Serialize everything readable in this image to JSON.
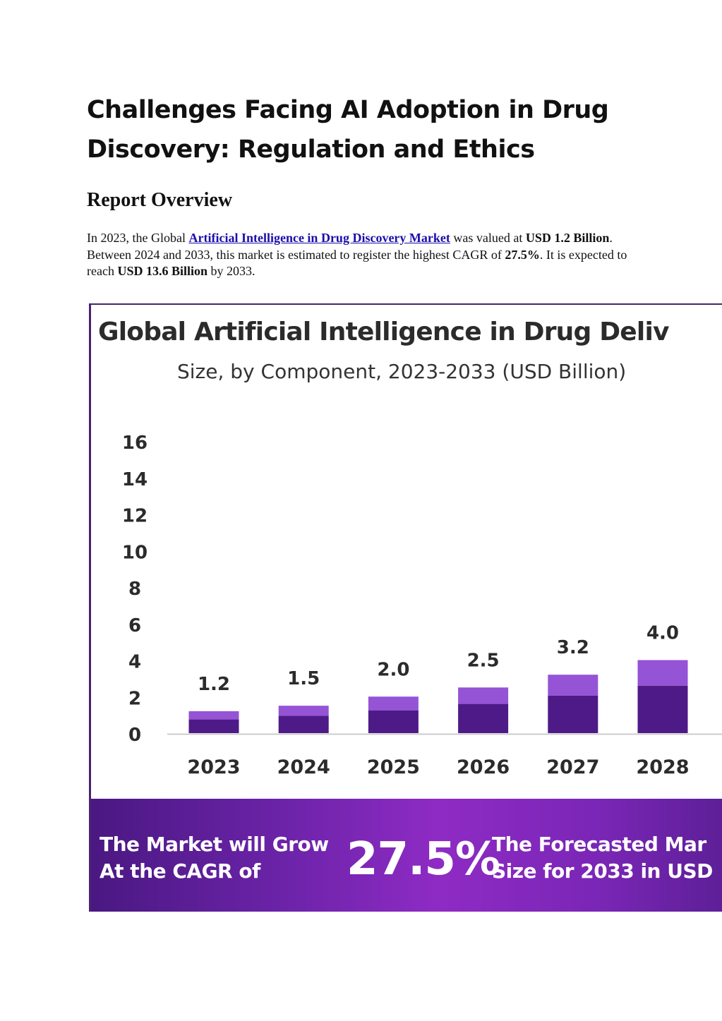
{
  "article": {
    "title": "Challenges Facing AI Adoption in Drug Discovery: Regulation and Ethics",
    "section_heading": "Report Overview",
    "overview": {
      "t1": "In 2023, the Global ",
      "link_text": "Artificial Intelligence in Drug Discovery Market",
      "t2": " was valued at ",
      "b1": "USD 1.2 Billion",
      "t3": ". Between 2024 and 2033, this market is estimated to register the highest CAGR of ",
      "b2": "27.5%",
      "t4": ". It is expected to reach ",
      "b3": "USD 13.6 Billion",
      "t5": " by 2033."
    }
  },
  "infographic": {
    "banner": {
      "left_text": "The Market will Grow\nAt the CAGR of",
      "value": "27.5%",
      "right_text": "The Forecasted Mar\nSize for 2033 in USD"
    }
  },
  "chart_data": {
    "type": "bar",
    "title": "Global Artificial Intelligence in Drug Deliv",
    "subtitle": "Size, by Component, 2023-2033 (USD Billion)",
    "categories": [
      "2023",
      "2024",
      "2025",
      "2026",
      "2027",
      "2028"
    ],
    "totals": [
      1.2,
      1.5,
      2.0,
      2.5,
      3.2,
      4.0
    ],
    "total_labels": [
      "1.2",
      "1.5",
      "2.0",
      "2.5",
      "3.2",
      "4.0"
    ],
    "series": [
      {
        "values": [
          0.75,
          0.95,
          1.25,
          1.6,
          2.05,
          2.6
        ]
      },
      {
        "values": [
          0.45,
          0.55,
          0.75,
          0.9,
          1.15,
          1.4
        ]
      }
    ],
    "y_ticks": [
      "16",
      "14",
      "12",
      "10",
      "8",
      "6",
      "4",
      "2",
      "0"
    ],
    "ylim": [
      0,
      16
    ],
    "grid": false,
    "legend": "none",
    "colors": {
      "bottom_segment": "#4e1a87",
      "top_segment": "#9553d6",
      "axis_line": "#cccccc",
      "label_text": "#2b2b2b"
    }
  }
}
